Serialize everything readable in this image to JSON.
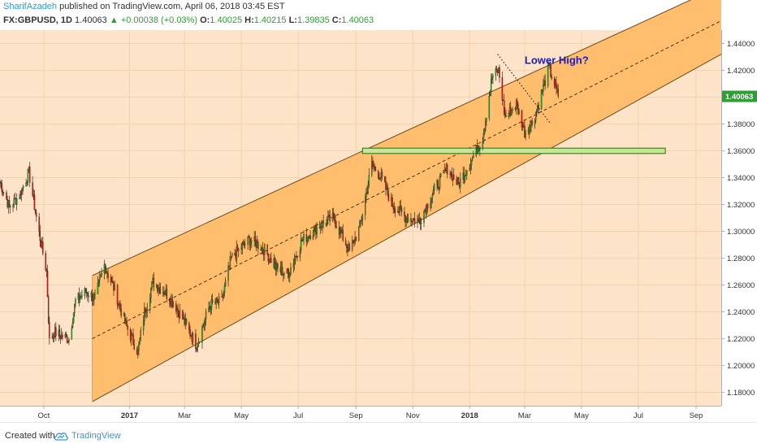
{
  "header": {
    "author": "SharifAzadeh",
    "published": "published on TradingView.com, April 06, 2018 03:45 EST",
    "symbol": "FX:GBPUSD, 1D",
    "last": "1.40063",
    "change": "+0.00038 (+0.03%)",
    "o_label": "O:",
    "o_val": "1.40025",
    "h_label": "H:",
    "h_val": "1.40215",
    "l_label": "L:",
    "l_val": "1.39835",
    "c_label": "C:",
    "c_val": "1.40063"
  },
  "footer": {
    "created_with": "Created with",
    "brand": "TradingView"
  },
  "chart_data": {
    "type": "candlestick",
    "symbol": "GBPUSD",
    "timeframe": "1D",
    "x_range": [
      "2016-08-15",
      "2018-09-28"
    ],
    "y_range": [
      1.17,
      1.45
    ],
    "y_ticks": [
      1.18,
      1.2,
      1.22,
      1.24,
      1.26,
      1.28,
      1.3,
      1.32,
      1.34,
      1.36,
      1.38,
      1.4,
      1.42,
      1.44
    ],
    "y_tick_labels": [
      "1.18000",
      "1.20000",
      "1.22000",
      "1.24000",
      "1.26000",
      "1.28000",
      "1.30000",
      "1.32000",
      "1.34000",
      "1.36000",
      "1.38000",
      "1.40000",
      "1.42000",
      "1.44000"
    ],
    "x_ticks": [
      {
        "date": "2016-10-01",
        "label": "Oct"
      },
      {
        "date": "2017-01-01",
        "label": "2017"
      },
      {
        "date": "2017-03-01",
        "label": "Mar"
      },
      {
        "date": "2017-05-01",
        "label": "May"
      },
      {
        "date": "2017-07-01",
        "label": "Jul"
      },
      {
        "date": "2017-09-01",
        "label": "Sep"
      },
      {
        "date": "2017-11-01",
        "label": "Nov"
      },
      {
        "date": "2018-01-01",
        "label": "2018"
      },
      {
        "date": "2018-03-01",
        "label": "Mar"
      },
      {
        "date": "2018-05-01",
        "label": "May"
      },
      {
        "date": "2018-07-01",
        "label": "Jul"
      },
      {
        "date": "2018-09-01",
        "label": "Sep"
      }
    ],
    "last_price_label": "1.40063",
    "price_path": [
      [
        "2016-08-15",
        1.337
      ],
      [
        "2016-08-25",
        1.318
      ],
      [
        "2016-09-05",
        1.327
      ],
      [
        "2016-09-15",
        1.344
      ],
      [
        "2016-09-25",
        1.302
      ],
      [
        "2016-10-04",
        1.27
      ],
      [
        "2016-10-07",
        1.218
      ],
      [
        "2016-10-12",
        1.225
      ],
      [
        "2016-10-20",
        1.222
      ],
      [
        "2016-10-28",
        1.22
      ],
      [
        "2016-11-04",
        1.248
      ],
      [
        "2016-11-15",
        1.255
      ],
      [
        "2016-11-25",
        1.25
      ],
      [
        "2016-12-05",
        1.275
      ],
      [
        "2016-12-15",
        1.258
      ],
      [
        "2016-12-28",
        1.23
      ],
      [
        "2017-01-10",
        1.21
      ],
      [
        "2017-01-17",
        1.24
      ],
      [
        "2017-01-26",
        1.262
      ],
      [
        "2017-02-08",
        1.255
      ],
      [
        "2017-02-20",
        1.244
      ],
      [
        "2017-03-14",
        1.215
      ],
      [
        "2017-03-28",
        1.245
      ],
      [
        "2017-04-10",
        1.248
      ],
      [
        "2017-04-20",
        1.28
      ],
      [
        "2017-05-10",
        1.294
      ],
      [
        "2017-05-25",
        1.287
      ],
      [
        "2017-06-08",
        1.272
      ],
      [
        "2017-06-20",
        1.268
      ],
      [
        "2017-07-05",
        1.293
      ],
      [
        "2017-07-25",
        1.305
      ],
      [
        "2017-08-08",
        1.31
      ],
      [
        "2017-08-25",
        1.285
      ],
      [
        "2017-09-05",
        1.303
      ],
      [
        "2017-09-18",
        1.35
      ],
      [
        "2017-09-28",
        1.34
      ],
      [
        "2017-10-10",
        1.32
      ],
      [
        "2017-10-25",
        1.31
      ],
      [
        "2017-11-08",
        1.308
      ],
      [
        "2017-11-25",
        1.332
      ],
      [
        "2017-12-08",
        1.347
      ],
      [
        "2017-12-20",
        1.335
      ],
      [
        "2018-01-05",
        1.356
      ],
      [
        "2018-01-15",
        1.37
      ],
      [
        "2018-01-25",
        1.415
      ],
      [
        "2018-02-01",
        1.42
      ],
      [
        "2018-02-08",
        1.385
      ],
      [
        "2018-02-20",
        1.395
      ],
      [
        "2018-03-01",
        1.374
      ],
      [
        "2018-03-10",
        1.382
      ],
      [
        "2018-03-20",
        1.405
      ],
      [
        "2018-03-27",
        1.422
      ],
      [
        "2018-04-06",
        1.4006
      ]
    ],
    "annotations": [
      {
        "type": "ascending_channel",
        "fill": "#ffbd6e",
        "upper": [
          [
            "2016-11-22",
            1.267
          ],
          [
            "2018-09-28",
            1.483
          ]
        ],
        "lower": [
          [
            "2016-11-22",
            1.173
          ],
          [
            "2018-09-28",
            1.432
          ]
        ]
      },
      {
        "type": "dashed_midline",
        "points": [
          [
            "2016-11-22",
            1.22
          ],
          [
            "2018-09-28",
            1.457
          ]
        ]
      },
      {
        "type": "support_zone",
        "from": "2017-09-08",
        "to": "2018-07-30",
        "y_low": 1.358,
        "y_high": 1.362,
        "color": "#c9e59a"
      },
      {
        "type": "dotted_trendline",
        "points": [
          [
            "2018-01-31",
            1.432
          ],
          [
            "2018-03-28",
            1.381
          ]
        ]
      },
      {
        "type": "text",
        "label": "Lower High?",
        "at": [
          "2018-03-01",
          1.425
        ],
        "color": "#1c1cc6"
      }
    ],
    "colors": {
      "up": "#2e9e35",
      "down": "#c21a1a",
      "background": "#fde3c8",
      "channel": "#ffbd6e"
    }
  }
}
